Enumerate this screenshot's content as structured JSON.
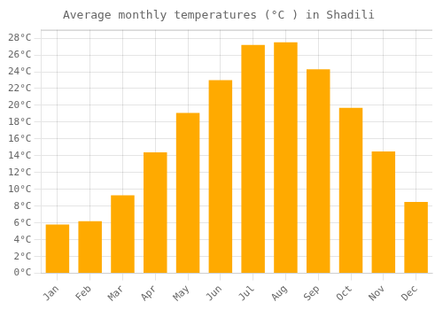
{
  "chart_data": {
    "type": "bar",
    "title": "Average monthly temperatures (°C ) in Shadili",
    "categories": [
      "Jan",
      "Feb",
      "Mar",
      "Apr",
      "May",
      "Jun",
      "Jul",
      "Aug",
      "Sep",
      "Oct",
      "Nov",
      "Dec"
    ],
    "values": [
      5.8,
      6.2,
      9.3,
      14.4,
      19.1,
      23.0,
      27.2,
      27.5,
      24.3,
      19.7,
      14.5,
      8.5
    ],
    "color": "#FFAA00",
    "ylim": [
      0,
      29
    ],
    "yticks": [
      {
        "value": 0,
        "label": "0°C"
      },
      {
        "value": 2,
        "label": "2°C"
      },
      {
        "value": 4,
        "label": "4°C"
      },
      {
        "value": 6,
        "label": "6°C"
      },
      {
        "value": 8,
        "label": "8°C"
      },
      {
        "value": 10,
        "label": "10°C"
      },
      {
        "value": 12,
        "label": "12°C"
      },
      {
        "value": 14,
        "label": "14°C"
      },
      {
        "value": 16,
        "label": "16°C"
      },
      {
        "value": 18,
        "label": "18°C"
      },
      {
        "value": 20,
        "label": "20°C"
      },
      {
        "value": 22,
        "label": "22°C"
      },
      {
        "value": 24,
        "label": "24°C"
      },
      {
        "value": 26,
        "label": "26°C"
      },
      {
        "value": 28,
        "label": "28°C"
      }
    ],
    "grid": true
  }
}
